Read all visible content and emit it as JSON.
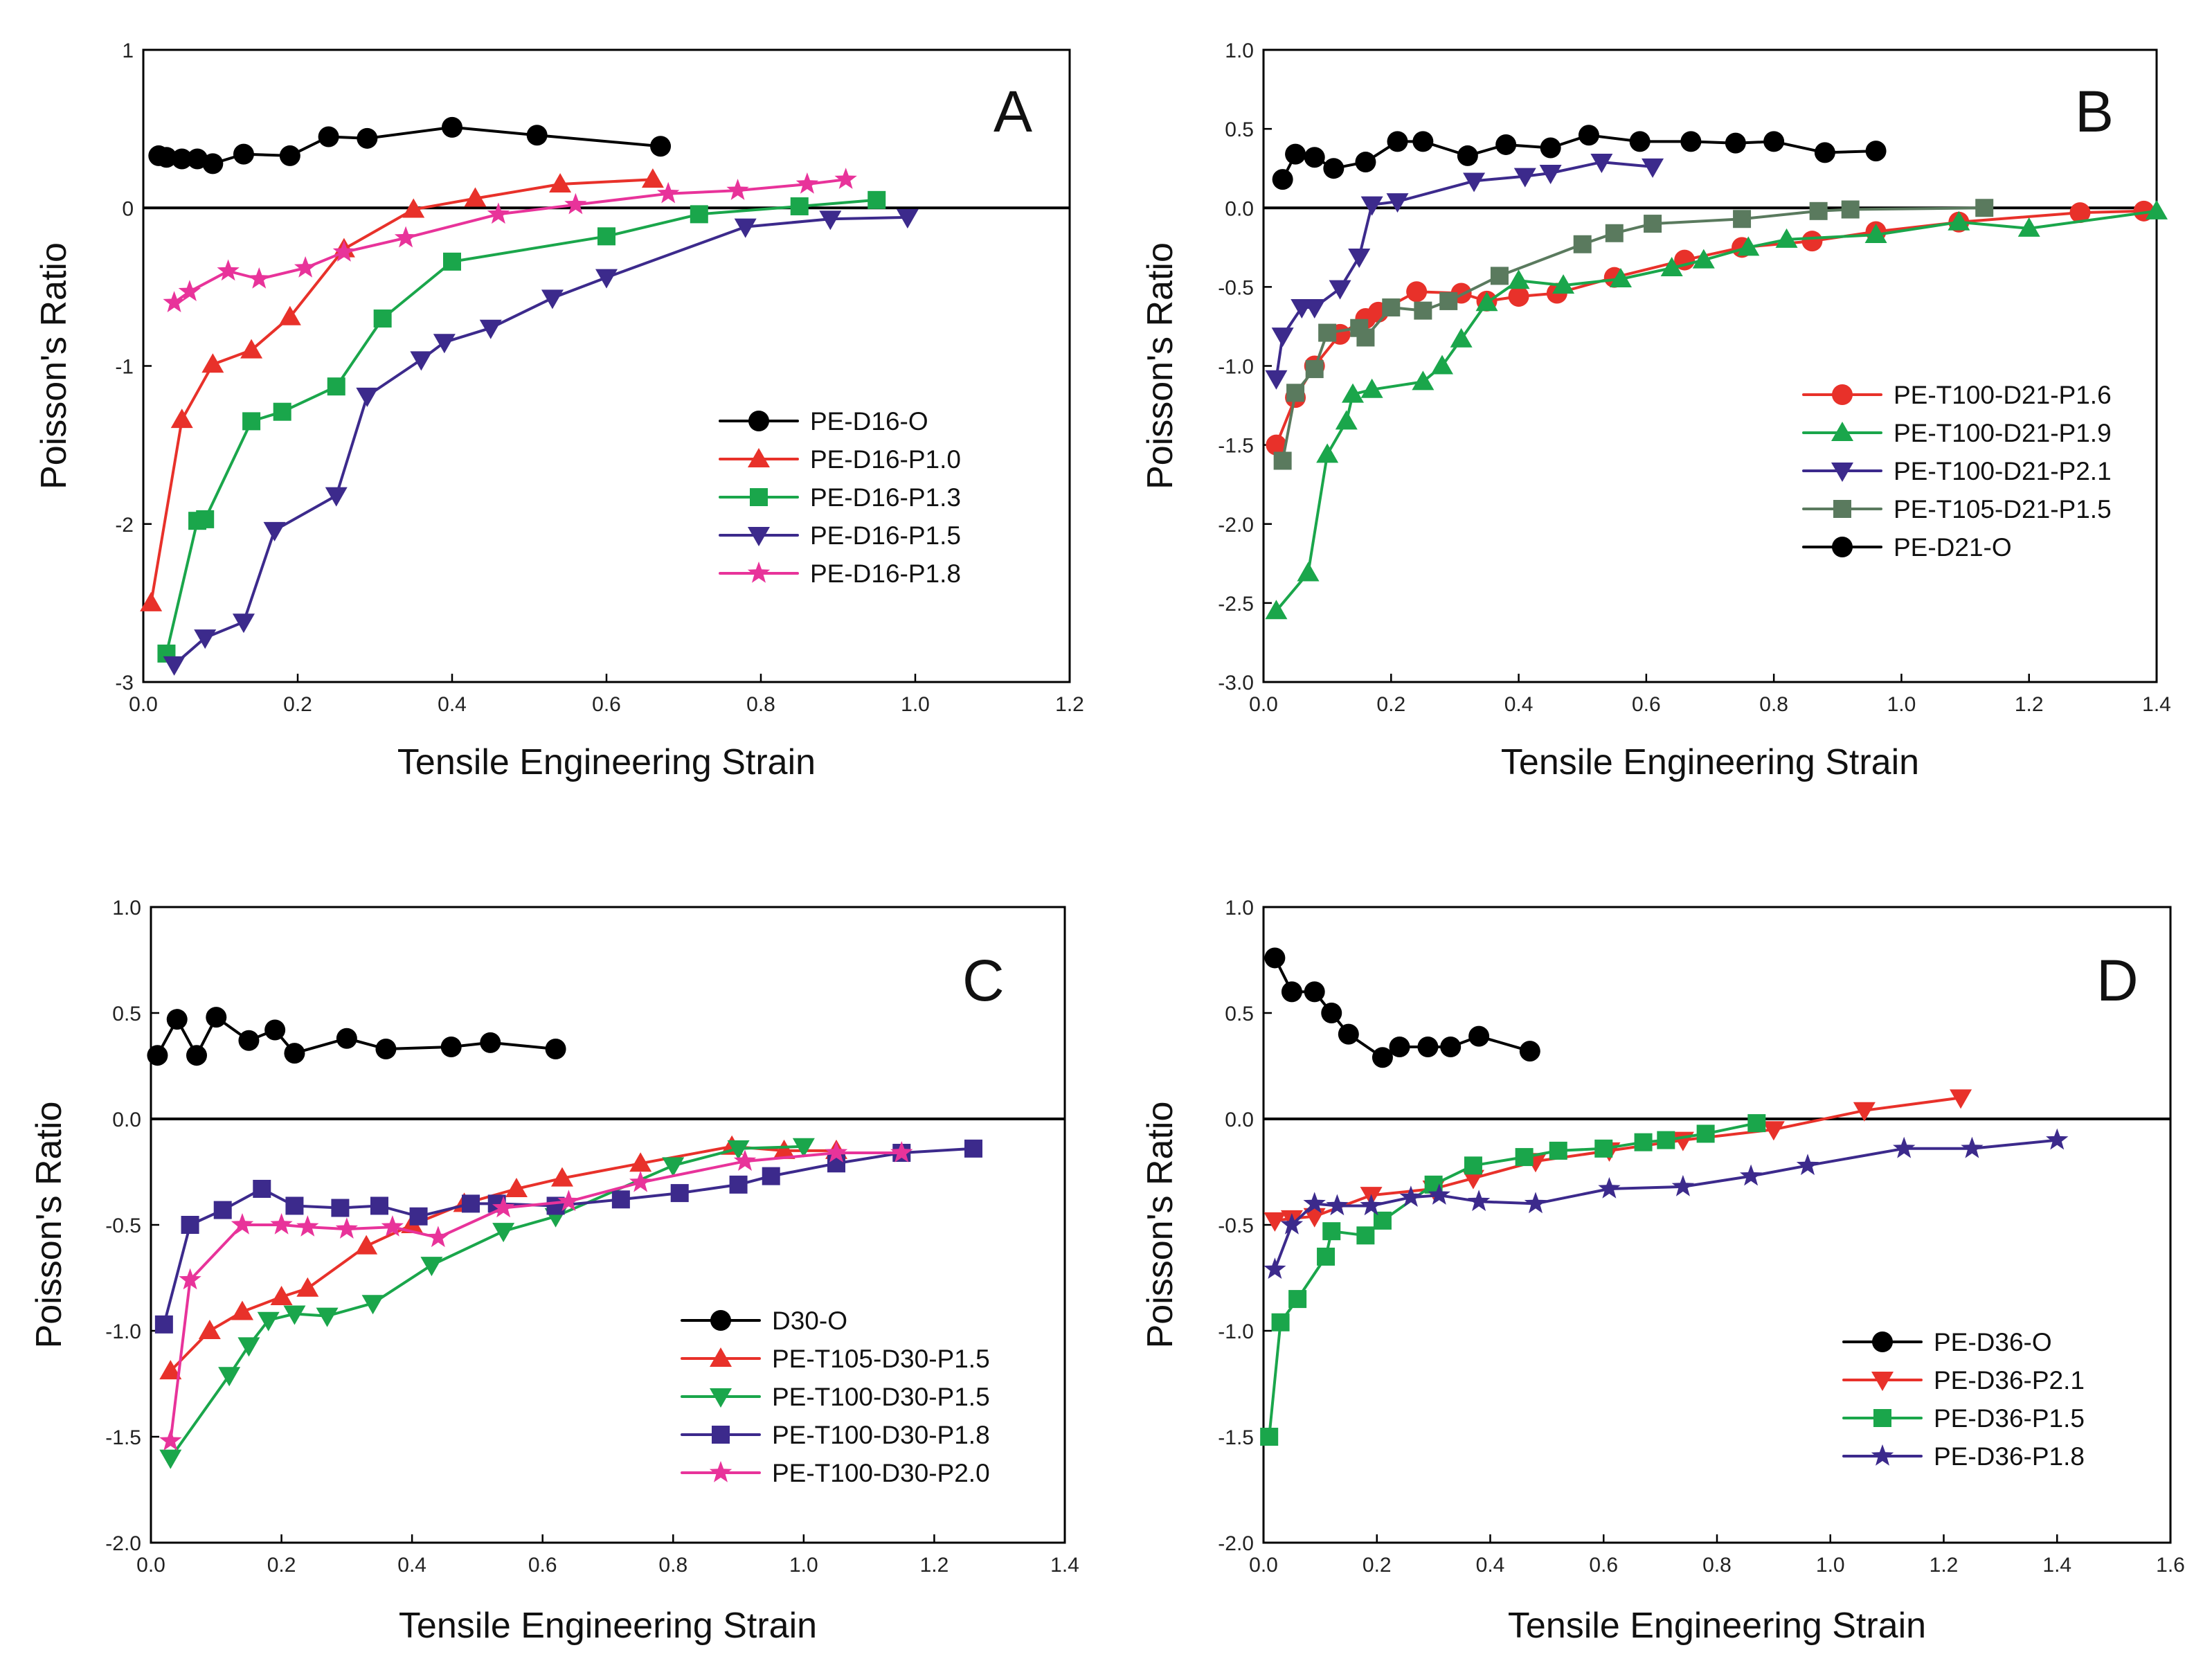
{
  "chart_data": [
    {
      "type": "line",
      "panel_label": "A",
      "xlabel": "Tensile Engineering Strain",
      "ylabel": "Poisson's Ratio",
      "xlim": [
        0,
        1.2
      ],
      "ylim": [
        -3,
        1
      ],
      "x_ticks": [
        0,
        0.2,
        0.4,
        0.6,
        0.8,
        1.0,
        1.2
      ],
      "x_tick_labels": [
        "0.0",
        "0.2",
        "0.4",
        "0.6",
        "0.8",
        "1.0",
        "1.2"
      ],
      "y_ticks": [
        1,
        0,
        -1,
        -2,
        -3
      ],
      "y_tick_labels": [
        "1",
        "0",
        "-1",
        "-2",
        "-3"
      ],
      "zero_line": true,
      "legend_position": "center-right",
      "series": [
        {
          "name": "PE-D16-O",
          "color": "#000000",
          "marker": "circle",
          "x": [
            0.02,
            0.03,
            0.05,
            0.07,
            0.09,
            0.13,
            0.19,
            0.24,
            0.29,
            0.4,
            0.51,
            0.67
          ],
          "y": [
            0.33,
            0.32,
            0.31,
            0.31,
            0.28,
            0.34,
            0.33,
            0.45,
            0.44,
            0.51,
            0.46,
            0.39
          ]
        },
        {
          "name": "PE-D16-P1.0",
          "color": "#e8312a",
          "marker": "triangle-up",
          "x": [
            0.01,
            0.05,
            0.09,
            0.14,
            0.19,
            0.26,
            0.35,
            0.43,
            0.54,
            0.66
          ],
          "y": [
            -2.5,
            -1.34,
            -0.99,
            -0.9,
            -0.69,
            -0.26,
            -0.01,
            0.06,
            0.15,
            0.18
          ]
        },
        {
          "name": "PE-D16-P1.3",
          "color": "#1aa64b",
          "marker": "square",
          "x": [
            0.03,
            0.07,
            0.08,
            0.14,
            0.18,
            0.25,
            0.31,
            0.4,
            0.6,
            0.72,
            0.85,
            0.95
          ],
          "y": [
            -2.82,
            -1.98,
            -1.97,
            -1.35,
            -1.29,
            -1.13,
            -0.7,
            -0.34,
            -0.18,
            -0.04,
            0.01,
            0.05
          ]
        },
        {
          "name": "PE-D16-P1.5",
          "color": "#3c2a8c",
          "marker": "triangle-down",
          "x": [
            0.04,
            0.08,
            0.13,
            0.17,
            0.25,
            0.29,
            0.36,
            0.39,
            0.45,
            0.53,
            0.6,
            0.78,
            0.89,
            0.99
          ],
          "y": [
            -2.89,
            -2.72,
            -2.62,
            -2.04,
            -1.82,
            -1.19,
            -0.96,
            -0.85,
            -0.76,
            -0.57,
            -0.44,
            -0.12,
            -0.07,
            -0.06
          ]
        },
        {
          "name": "PE-D16-P1.8",
          "color": "#e8339a",
          "marker": "star",
          "x": [
            0.04,
            0.06,
            0.11,
            0.15,
            0.21,
            0.26,
            0.34,
            0.46,
            0.56,
            0.68,
            0.77,
            0.86,
            0.91
          ],
          "y": [
            -0.6,
            -0.53,
            -0.4,
            -0.45,
            -0.38,
            -0.28,
            -0.19,
            -0.04,
            0.02,
            0.09,
            0.11,
            0.15,
            0.18
          ]
        }
      ]
    },
    {
      "type": "line",
      "panel_label": "B",
      "xlabel": "Tensile Engineering Strain",
      "ylabel": "Poisson's Ratio",
      "xlim": [
        0,
        1.4
      ],
      "ylim": [
        -3,
        1
      ],
      "x_ticks": [
        0,
        0.2,
        0.4,
        0.6,
        0.8,
        1.0,
        1.2,
        1.4
      ],
      "x_tick_labels": [
        "0.0",
        "0.2",
        "0.4",
        "0.6",
        "0.8",
        "1.0",
        "1.2",
        "1.4"
      ],
      "y_ticks": [
        1,
        0.5,
        0,
        -0.5,
        -1,
        -1.5,
        -2,
        -2.5,
        -3
      ],
      "y_tick_labels": [
        "1.0",
        "0.5",
        "0.0",
        "-0.5",
        "-1.0",
        "-1.5",
        "-2.0",
        "-2.5",
        "-3.0"
      ],
      "zero_line": true,
      "legend_position": "center-right",
      "series": [
        {
          "name": "PE-T100-D21-P1.6",
          "color": "#e8312a",
          "marker": "circle",
          "x": [
            0.02,
            0.05,
            0.08,
            0.12,
            0.16,
            0.18,
            0.24,
            0.31,
            0.35,
            0.4,
            0.46,
            0.55,
            0.66,
            0.75,
            0.86,
            0.96,
            1.09,
            1.28,
            1.38
          ],
          "y": [
            -1.5,
            -1.2,
            -1.0,
            -0.8,
            -0.7,
            -0.66,
            -0.53,
            -0.54,
            -0.59,
            -0.56,
            -0.54,
            -0.44,
            -0.33,
            -0.25,
            -0.21,
            -0.15,
            -0.09,
            -0.03,
            -0.02
          ]
        },
        {
          "name": "PE-T100-D21-P1.9",
          "color": "#1aa64b",
          "marker": "triangle-up",
          "x": [
            0.02,
            0.07,
            0.1,
            0.13,
            0.14,
            0.17,
            0.25,
            0.28,
            0.31,
            0.35,
            0.4,
            0.47,
            0.56,
            0.64,
            0.69,
            0.76,
            0.82,
            0.96,
            1.09,
            1.2,
            1.4
          ],
          "y": [
            -2.55,
            -2.31,
            -1.56,
            -1.35,
            -1.18,
            -1.15,
            -1.1,
            -1.0,
            -0.83,
            -0.6,
            -0.46,
            -0.49,
            -0.45,
            -0.38,
            -0.33,
            -0.25,
            -0.2,
            -0.17,
            -0.09,
            -0.13,
            -0.02
          ]
        },
        {
          "name": "PE-T100-D21-P2.1",
          "color": "#3c2a8c",
          "marker": "triangle-down",
          "x": [
            0.02,
            0.03,
            0.06,
            0.08,
            0.12,
            0.15,
            0.17,
            0.21,
            0.33,
            0.41,
            0.45,
            0.53,
            0.61
          ],
          "y": [
            -1.08,
            -0.81,
            -0.63,
            -0.63,
            -0.51,
            -0.31,
            0.02,
            0.04,
            0.17,
            0.2,
            0.22,
            0.29,
            0.26
          ]
        },
        {
          "name": "PE-T105-D21-P1.5",
          "color": "#5a7a5e",
          "marker": "square",
          "x": [
            0.03,
            0.05,
            0.08,
            0.1,
            0.15,
            0.16,
            0.2,
            0.25,
            0.29,
            0.37,
            0.5,
            0.55,
            0.61,
            0.75,
            0.87,
            0.92,
            1.13
          ],
          "y": [
            -1.6,
            -1.17,
            -1.02,
            -0.79,
            -0.76,
            -0.82,
            -0.63,
            -0.65,
            -0.59,
            -0.43,
            -0.23,
            -0.16,
            -0.1,
            -0.07,
            -0.02,
            -0.01,
            0.0
          ]
        },
        {
          "name": "PE-D21-O",
          "color": "#000000",
          "marker": "circle",
          "x": [
            0.03,
            0.05,
            0.08,
            0.11,
            0.16,
            0.21,
            0.25,
            0.32,
            0.38,
            0.45,
            0.51,
            0.59,
            0.67,
            0.74,
            0.8,
            0.88,
            0.96
          ],
          "y": [
            0.18,
            0.34,
            0.32,
            0.25,
            0.29,
            0.42,
            0.42,
            0.33,
            0.4,
            0.38,
            0.46,
            0.42,
            0.42,
            0.41,
            0.42,
            0.35,
            0.36
          ]
        }
      ]
    },
    {
      "type": "line",
      "panel_label": "C",
      "xlabel": "Tensile Engineering Strain",
      "ylabel": "Poisson's Ratio",
      "xlim": [
        0,
        1.4
      ],
      "ylim": [
        -2,
        1
      ],
      "x_ticks": [
        0,
        0.2,
        0.4,
        0.6,
        0.8,
        1.0,
        1.2,
        1.4
      ],
      "x_tick_labels": [
        "0.0",
        "0.2",
        "0.4",
        "0.6",
        "0.8",
        "1.0",
        "1.2",
        "1.4"
      ],
      "y_ticks": [
        1,
        0.5,
        0,
        -0.5,
        -1,
        -1.5,
        -2
      ],
      "y_tick_labels": [
        "1.0",
        "0.5",
        "0.0",
        "-0.5",
        "-1.0",
        "-1.5",
        "-2.0"
      ],
      "zero_line": true,
      "legend_position": "bottom-right",
      "series": [
        {
          "name": "D30-O",
          "color": "#000000",
          "marker": "circle",
          "x": [
            0.01,
            0.04,
            0.07,
            0.1,
            0.15,
            0.19,
            0.22,
            0.3,
            0.36,
            0.46,
            0.52,
            0.62
          ],
          "y": [
            0.3,
            0.47,
            0.3,
            0.48,
            0.37,
            0.42,
            0.31,
            0.38,
            0.33,
            0.34,
            0.36,
            0.33
          ]
        },
        {
          "name": "PE-T105-D30-P1.5",
          "color": "#e8312a",
          "marker": "triangle-up",
          "x": [
            0.03,
            0.09,
            0.14,
            0.2,
            0.24,
            0.33,
            0.4,
            0.48,
            0.56,
            0.63,
            0.75,
            0.89,
            0.97,
            1.05
          ],
          "y": [
            -1.19,
            -1.0,
            -0.91,
            -0.84,
            -0.8,
            -0.6,
            -0.5,
            -0.4,
            -0.33,
            -0.28,
            -0.21,
            -0.13,
            -0.15,
            -0.15
          ]
        },
        {
          "name": "PE-T100-D30-P1.5",
          "color": "#1aa64b",
          "marker": "triangle-down",
          "x": [
            0.03,
            0.12,
            0.15,
            0.18,
            0.22,
            0.27,
            0.34,
            0.43,
            0.54,
            0.62,
            0.8,
            0.9,
            1.0
          ],
          "y": [
            -1.6,
            -1.21,
            -1.07,
            -0.95,
            -0.92,
            -0.93,
            -0.87,
            -0.69,
            -0.53,
            -0.46,
            -0.22,
            -0.14,
            -0.13
          ]
        },
        {
          "name": "PE-T100-D30-P1.8",
          "color": "#3c2a8c",
          "marker": "square",
          "x": [
            0.02,
            0.06,
            0.11,
            0.17,
            0.22,
            0.29,
            0.35,
            0.41,
            0.49,
            0.53,
            0.62,
            0.72,
            0.81,
            0.9,
            0.95,
            1.05,
            1.15,
            1.26
          ],
          "y": [
            -0.97,
            -0.5,
            -0.43,
            -0.33,
            -0.41,
            -0.42,
            -0.41,
            -0.46,
            -0.4,
            -0.4,
            -0.41,
            -0.38,
            -0.35,
            -0.31,
            -0.27,
            -0.21,
            -0.16,
            -0.14
          ]
        },
        {
          "name": "PE-T100-D30-P2.0",
          "color": "#e8339a",
          "marker": "star",
          "x": [
            0.03,
            0.06,
            0.14,
            0.2,
            0.24,
            0.3,
            0.37,
            0.44,
            0.54,
            0.64,
            0.75,
            0.91,
            1.05,
            1.15
          ],
          "y": [
            -1.52,
            -0.76,
            -0.5,
            -0.5,
            -0.51,
            -0.52,
            -0.51,
            -0.56,
            -0.42,
            -0.39,
            -0.3,
            -0.2,
            -0.16,
            -0.16
          ]
        }
      ]
    },
    {
      "type": "line",
      "panel_label": "D",
      "xlabel": "Tensile Engineering Strain",
      "ylabel": "Poisson's Ratio",
      "xlim": [
        0,
        1.6
      ],
      "ylim": [
        -2,
        1
      ],
      "x_ticks": [
        0,
        0.2,
        0.4,
        0.6,
        0.8,
        1.0,
        1.2,
        1.4,
        1.6
      ],
      "x_tick_labels": [
        "0.0",
        "0.2",
        "0.4",
        "0.6",
        "0.8",
        "1.0",
        "1.2",
        "1.4",
        "1.6"
      ],
      "y_ticks": [
        1,
        0.5,
        0,
        -0.5,
        -1,
        -1.5,
        -2
      ],
      "y_tick_labels": [
        "1.0",
        "0.5",
        "0.0",
        "-0.5",
        "-1.0",
        "-1.5",
        "-2.0"
      ],
      "zero_line": true,
      "legend_position": "bottom-right",
      "series": [
        {
          "name": "PE-D36-O",
          "color": "#000000",
          "marker": "circle",
          "x": [
            0.02,
            0.05,
            0.09,
            0.12,
            0.15,
            0.21,
            0.24,
            0.29,
            0.33,
            0.38,
            0.47
          ],
          "y": [
            0.76,
            0.6,
            0.6,
            0.5,
            0.4,
            0.29,
            0.34,
            0.34,
            0.34,
            0.39,
            0.32
          ]
        },
        {
          "name": "PE-D36-P2.1",
          "color": "#e8312a",
          "marker": "triangle-down",
          "x": [
            0.02,
            0.05,
            0.09,
            0.19,
            0.3,
            0.37,
            0.48,
            0.61,
            0.74,
            0.9,
            1.06,
            1.23
          ],
          "y": [
            -0.48,
            -0.47,
            -0.46,
            -0.36,
            -0.33,
            -0.28,
            -0.2,
            -0.15,
            -0.1,
            -0.05,
            0.04,
            0.1
          ]
        },
        {
          "name": "PE-D36-P1.5",
          "color": "#1aa64b",
          "marker": "square",
          "x": [
            0.01,
            0.03,
            0.06,
            0.11,
            0.12,
            0.18,
            0.21,
            0.3,
            0.37,
            0.46,
            0.52,
            0.6,
            0.67,
            0.71,
            0.78,
            0.87
          ],
          "y": [
            -1.5,
            -0.96,
            -0.85,
            -0.65,
            -0.53,
            -0.55,
            -0.48,
            -0.31,
            -0.22,
            -0.18,
            -0.15,
            -0.14,
            -0.11,
            -0.1,
            -0.07,
            -0.02
          ]
        },
        {
          "name": "PE-D36-P1.8",
          "color": "#3c2a8c",
          "marker": "star",
          "x": [
            0.02,
            0.05,
            0.09,
            0.13,
            0.19,
            0.26,
            0.31,
            0.38,
            0.48,
            0.61,
            0.74,
            0.86,
            0.96,
            1.13,
            1.25,
            1.4
          ],
          "y": [
            -0.71,
            -0.5,
            -0.4,
            -0.41,
            -0.41,
            -0.37,
            -0.36,
            -0.39,
            -0.4,
            -0.33,
            -0.32,
            -0.27,
            -0.22,
            -0.14,
            -0.14,
            -0.1
          ]
        }
      ]
    }
  ]
}
